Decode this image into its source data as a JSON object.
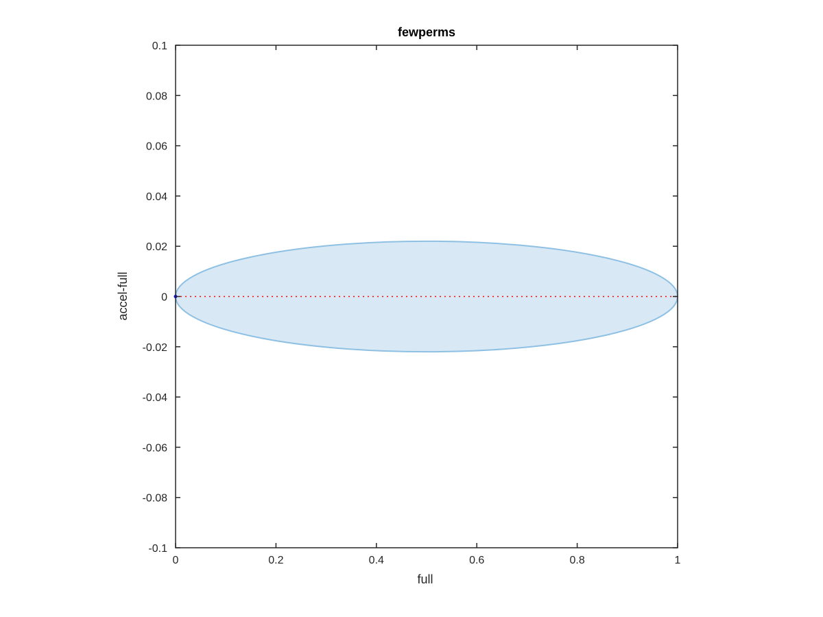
{
  "chart_data": {
    "type": "scatter",
    "title": "fewperms",
    "xlabel": "full",
    "ylabel": "accel-full",
    "xlim": [
      0,
      1
    ],
    "ylim": [
      -0.1,
      0.1
    ],
    "xticks": [
      0,
      0.2,
      0.4,
      0.6,
      0.8,
      1
    ],
    "xtick_labels": [
      "0",
      "0.2",
      "0.4",
      "0.6",
      "0.8",
      "1"
    ],
    "yticks": [
      -0.1,
      -0.08,
      -0.06,
      -0.04,
      -0.02,
      0,
      0.02,
      0.04,
      0.06,
      0.08,
      0.1
    ],
    "ytick_labels": [
      "-0.1",
      "-0.08",
      "-0.06",
      "-0.04",
      "-0.02",
      "0",
      "0.02",
      "0.04",
      "0.06",
      "0.08",
      "0.1"
    ],
    "grid": false,
    "box": true,
    "ellipse": {
      "center": [
        0.5,
        0
      ],
      "x_semi_axis": 0.5,
      "y_semi_axis": 0.022,
      "fill_color": "#d8e8f5",
      "edge_color": "#8ec0e3"
    },
    "reference_line": {
      "y": 0,
      "x_range": [
        0,
        1
      ],
      "style": "dotted",
      "color": "#ff0000"
    },
    "series": [
      {
        "color": "#0000ff",
        "points": [
          {
            "x": 0,
            "y": 0
          }
        ]
      }
    ]
  }
}
